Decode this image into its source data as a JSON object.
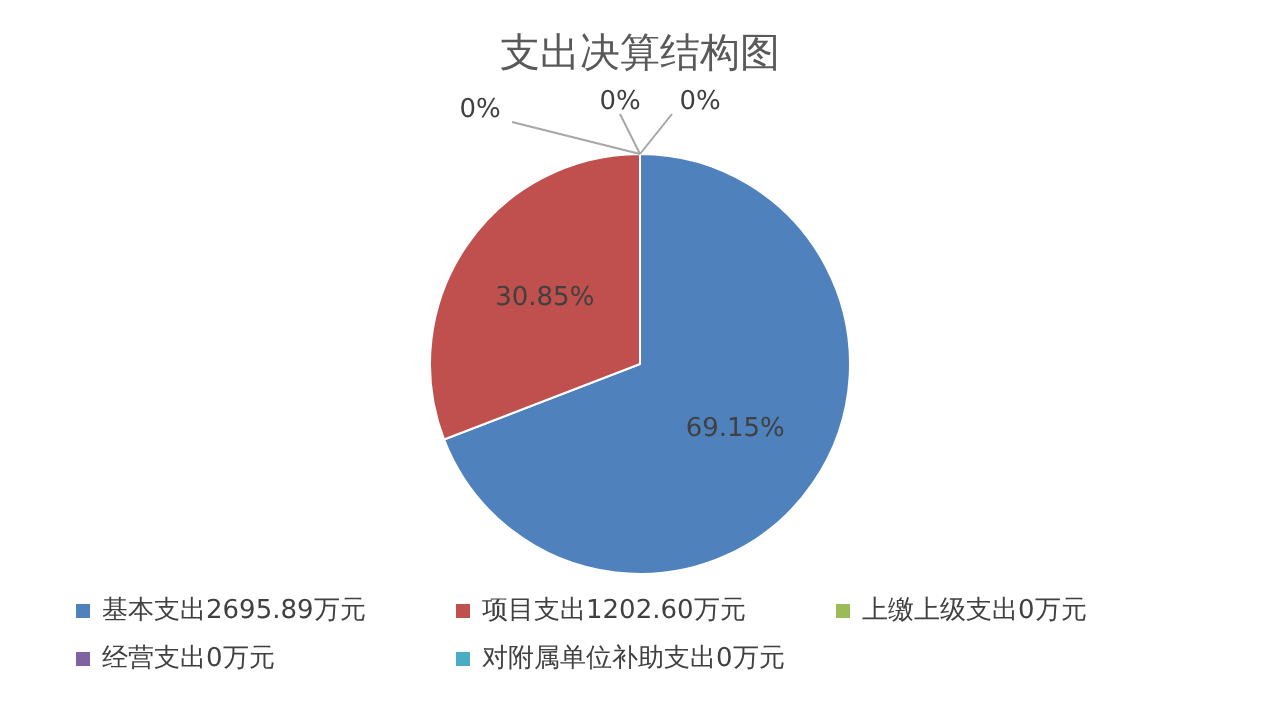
{
  "chart_data": {
    "type": "pie",
    "title": "支出决算结构图",
    "categories": [
      "基本支出2695.89万元",
      "项目支出1202.60万元",
      "上缴上级支出0万元",
      "经营支出0万元",
      "对附属单位补助支出0万元"
    ],
    "values": [
      69.15,
      30.85,
      0,
      0,
      0
    ],
    "value_labels": [
      "69.15%",
      "30.85%",
      "0%",
      "0%",
      "0%"
    ],
    "colors": [
      "#4f81bd",
      "#c0504d",
      "#9bbb59",
      "#8064a2",
      "#4bacc6"
    ],
    "legend": "bottom"
  }
}
